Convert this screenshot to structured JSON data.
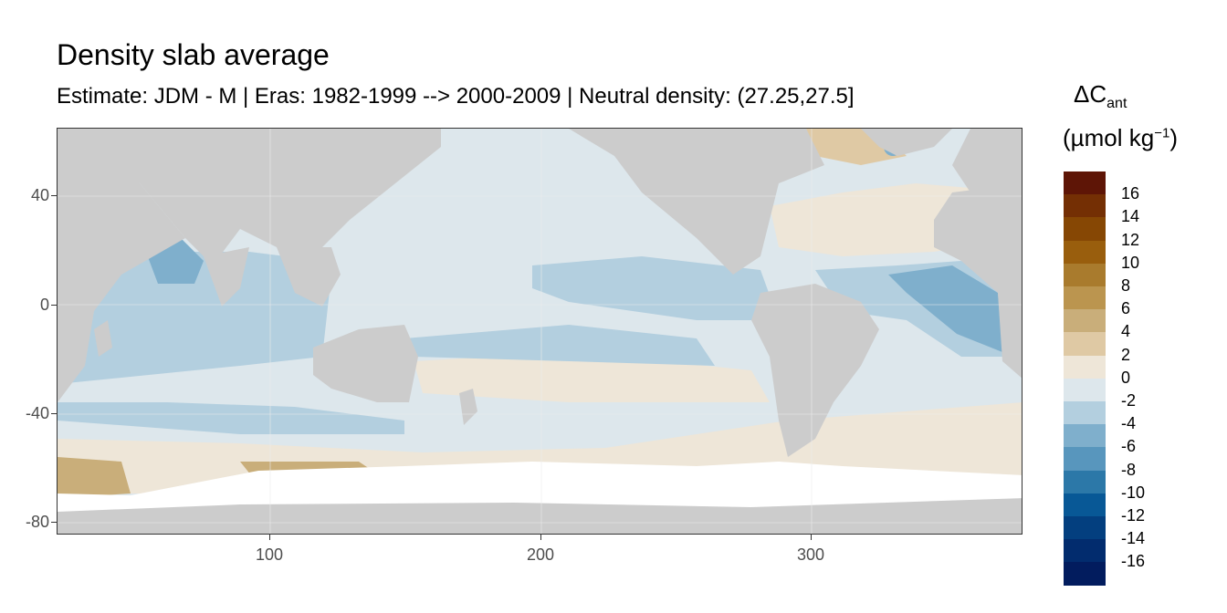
{
  "title": "Density slab average",
  "subtitle": "Estimate: JDM - M | Eras: 1982-1999 --> 2000-2009 | Neutral density: (27.25,27.5]",
  "legend": {
    "title_main": "ΔC",
    "title_sub": "ant",
    "unit_prefix": "(µmol kg",
    "unit_sup": "−1",
    "unit_suffix": ")",
    "labels": [
      "16",
      "14",
      "12",
      "10",
      "8",
      "6",
      "4",
      "2",
      "0",
      "-2",
      "-4",
      "-6",
      "-8",
      "-10",
      "-12",
      "-14",
      "-16"
    ],
    "colors": [
      "#5e1506",
      "#742f04",
      "#864704",
      "#995e0d",
      "#a97b2d",
      "#bb954f",
      "#c9ae7a",
      "#dfc9a4",
      "#eee6d8",
      "#dde7ec",
      "#b3cfdf",
      "#7fafcc",
      "#5896bd",
      "#2c78a8",
      "#085896",
      "#033f7f",
      "#022c6e",
      "#021c5e"
    ]
  },
  "axes": {
    "x_ticks": [
      "100",
      "200",
      "300"
    ],
    "y_ticks": [
      "40",
      "0",
      "-40",
      "-80"
    ]
  },
  "colors": {
    "land": "#cccccc",
    "ice": "#ffffff",
    "ocean_neutral": "#dde7ec",
    "ocean_warm": "#eee6d8"
  }
}
